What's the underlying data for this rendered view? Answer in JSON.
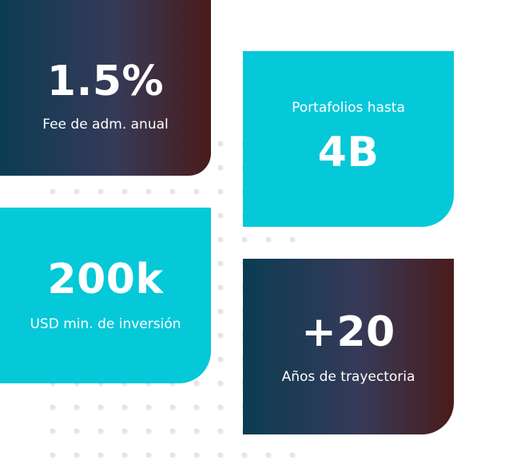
{
  "cards": {
    "fee": {
      "value": "1.5%",
      "label": "Fee de adm. anual"
    },
    "portfolios": {
      "label": "Portafolios hasta",
      "value": "4B"
    },
    "minimum": {
      "value": "200k",
      "label": "USD min. de inversión"
    },
    "years": {
      "value": "+20",
      "label": "Años de trayectoria"
    }
  },
  "colors": {
    "cyan": "#05c8d9",
    "gradient_start": "#0b3c53",
    "gradient_mid": "#363a58",
    "gradient_end": "#4a1b1b",
    "dots": "#e3e5e8"
  }
}
